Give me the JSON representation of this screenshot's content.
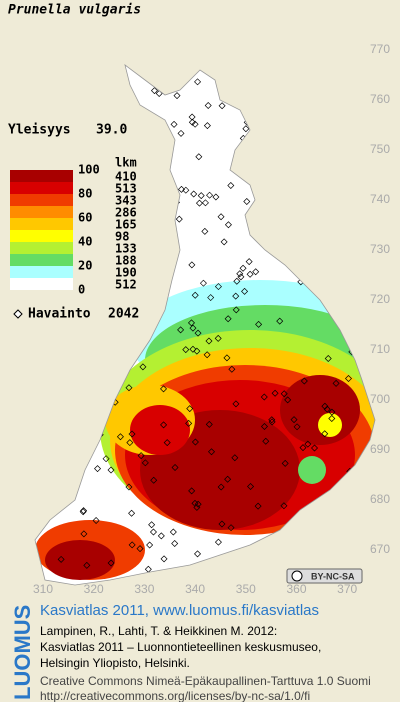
{
  "title": "Prunella vulgaris",
  "frequency": {
    "label": "Yleisyys",
    "value": "39.0"
  },
  "legend": {
    "count_header": "lkm",
    "scale_labels": [
      100,
      80,
      60,
      40,
      20,
      0
    ],
    "classes": [
      {
        "color": "#a80000",
        "count": 410
      },
      {
        "color": "#d80000",
        "count": 513
      },
      {
        "color": "#f03c00",
        "count": 343
      },
      {
        "color": "#ff8c00",
        "count": 286
      },
      {
        "color": "#ffc800",
        "count": 165
      },
      {
        "color": "#ffff00",
        "count": 98
      },
      {
        "color": "#b4f032",
        "count": 133
      },
      {
        "color": "#64dc64",
        "count": 188
      },
      {
        "color": "#aaffff",
        "count": 190
      },
      {
        "color": "#ffffff",
        "count": 512
      }
    ],
    "observations": {
      "label": "Havainto",
      "value": 2042
    }
  },
  "axis_right": [
    770,
    760,
    750,
    740,
    730,
    720,
    710,
    700,
    690,
    680,
    670
  ],
  "axis_bottom": [
    310,
    320,
    330,
    340,
    350,
    360,
    370
  ],
  "license_badge": "BY-NC-SA",
  "logo": "LUOMUS",
  "footer": {
    "headline": "Kasviatlas 2011, www.luomus.fi/kasviatlas",
    "citation": [
      "Lampinen, R., Lahti, T. & Heikkinen M. 2012:",
      "Kasviatlas 2011 – Luonnontieteellinen keskusmuseo,",
      "Helsingin Yliopisto, Helsinki."
    ],
    "license": [
      "Creative Commons Nimeä-Epäkaupallinen-Tarttuva 1.0 Suomi",
      "http://creativecommons.org/licenses/by-nc-sa/1.0/fi"
    ]
  }
}
